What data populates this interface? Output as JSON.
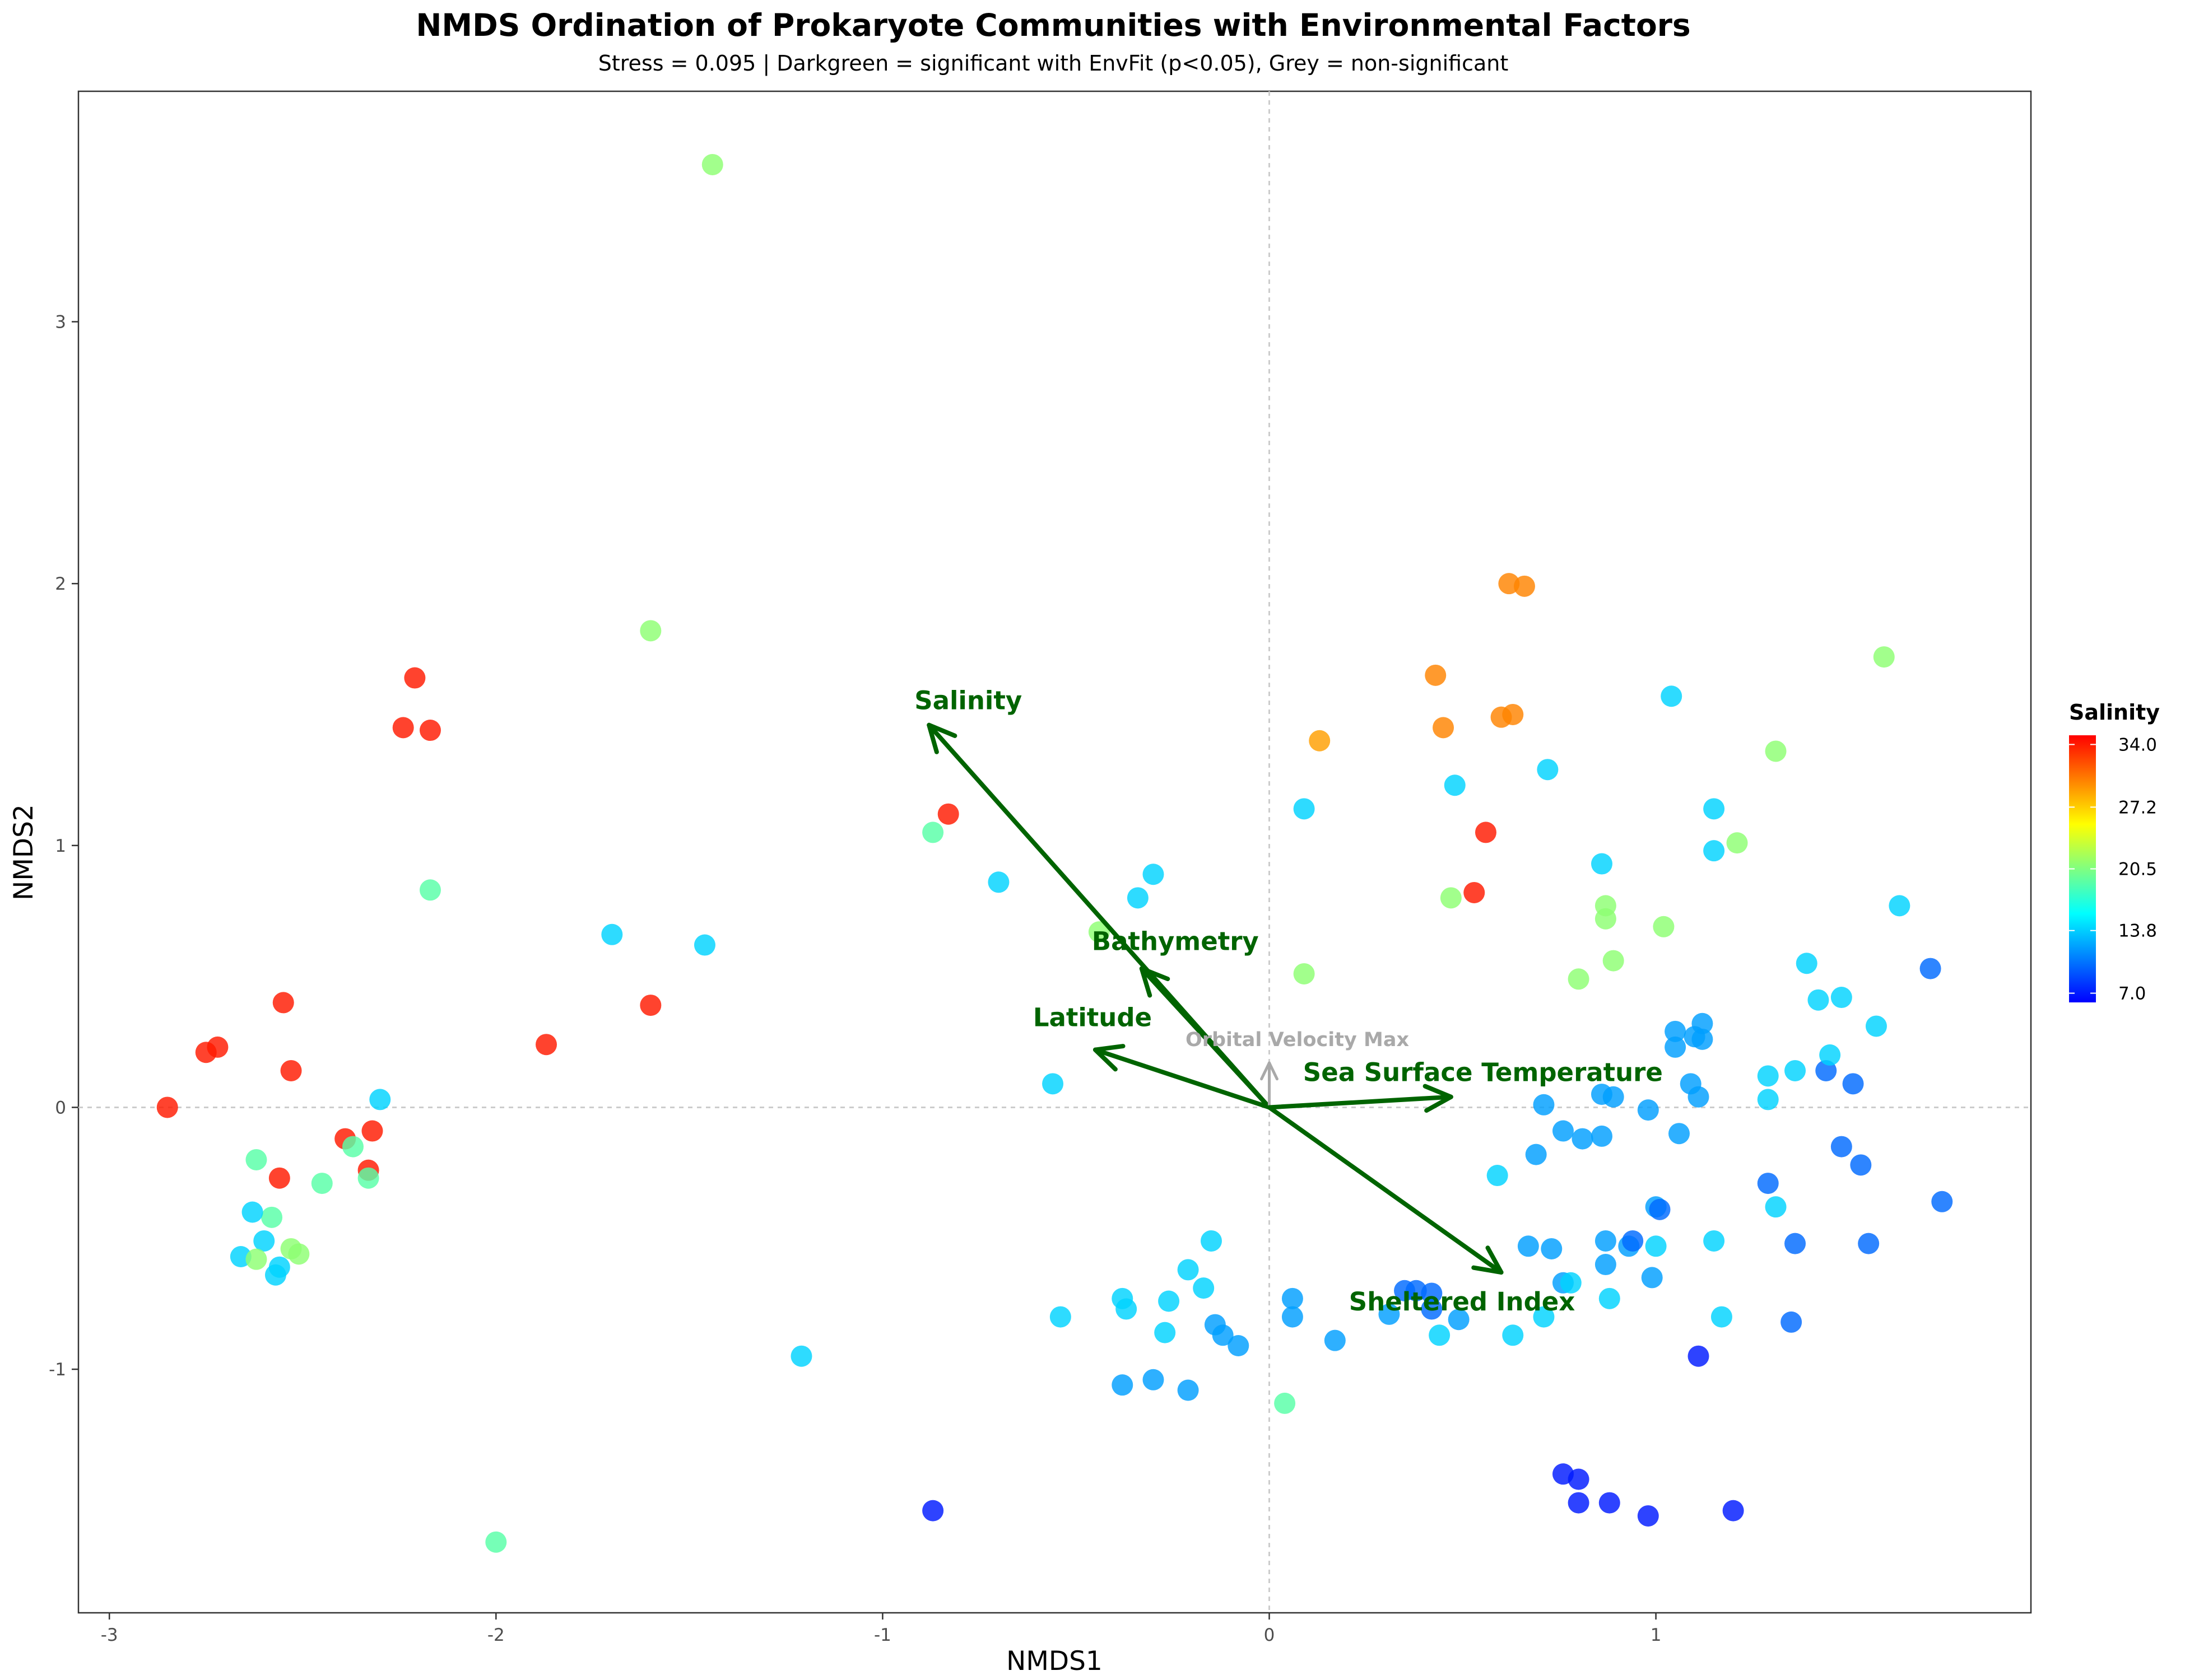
{
  "chart_data": {
    "type": "scatter",
    "title": "NMDS Ordination of Prokaryote Communities with Environmental Factors",
    "subtitle": "Stress = 0.095 | Darkgreen = significant with EnvFit (p<0.05), Grey = non-significant",
    "xlabel": "NMDS1",
    "ylabel": "NMDS2",
    "xlim": [
      -3.08,
      1.97
    ],
    "ylim": [
      -1.93,
      3.88
    ],
    "x_ticks": [
      -3,
      -2,
      -1,
      0,
      1
    ],
    "y_ticks": [
      -1,
      0,
      1,
      2,
      3
    ],
    "x_tick_labels": [
      "-3",
      "-2",
      "-1",
      "0",
      "1"
    ],
    "y_tick_labels": [
      "-1",
      "0",
      "1",
      "2",
      "3"
    ],
    "reference_lines": {
      "x": 0,
      "y": 0,
      "style": "dotted"
    },
    "grid": false,
    "color_variable": "Salinity",
    "colorbar": {
      "title": "Salinity",
      "min": 6,
      "max": 35,
      "ticks": [
        34.0,
        27.2,
        20.5,
        13.8,
        7.0
      ],
      "tick_labels": [
        "34.0",
        "27.2",
        "20.5",
        "13.8",
        "7.0"
      ],
      "colormap": [
        "#0000ff",
        "#0080ff",
        "#00ffff",
        "#80ff80",
        "#ffff00",
        "#ff8000",
        "#ff0000"
      ],
      "placement": "right"
    },
    "points": [
      {
        "x": -2.85,
        "y": 0.0,
        "salinity": 34
      },
      {
        "x": -2.75,
        "y": 0.21,
        "salinity": 34
      },
      {
        "x": -2.72,
        "y": 0.23,
        "salinity": 34
      },
      {
        "x": -2.55,
        "y": 0.4,
        "salinity": 34
      },
      {
        "x": -2.53,
        "y": 0.14,
        "salinity": 34
      },
      {
        "x": -2.56,
        "y": -0.27,
        "salinity": 34
      },
      {
        "x": -2.39,
        "y": -0.12,
        "salinity": 34
      },
      {
        "x": -2.32,
        "y": -0.09,
        "salinity": 34
      },
      {
        "x": -2.33,
        "y": -0.24,
        "salinity": 34
      },
      {
        "x": -2.37,
        "y": -0.15,
        "salinity": 19
      },
      {
        "x": -2.33,
        "y": -0.27,
        "salinity": 19
      },
      {
        "x": -2.3,
        "y": 0.03,
        "salinity": 14
      },
      {
        "x": -2.45,
        "y": -0.29,
        "salinity": 19
      },
      {
        "x": -2.62,
        "y": -0.2,
        "salinity": 19
      },
      {
        "x": -2.58,
        "y": -0.42,
        "salinity": 19
      },
      {
        "x": -2.63,
        "y": -0.4,
        "salinity": 14
      },
      {
        "x": -2.6,
        "y": -0.51,
        "salinity": 14
      },
      {
        "x": -2.66,
        "y": -0.57,
        "salinity": 14
      },
      {
        "x": -2.57,
        "y": -0.64,
        "salinity": 14
      },
      {
        "x": -2.56,
        "y": -0.61,
        "salinity": 14
      },
      {
        "x": -2.62,
        "y": -0.58,
        "salinity": 21
      },
      {
        "x": -2.53,
        "y": -0.54,
        "salinity": 21
      },
      {
        "x": -2.51,
        "y": -0.56,
        "salinity": 21
      },
      {
        "x": -2.21,
        "y": 1.64,
        "salinity": 34
      },
      {
        "x": -2.24,
        "y": 1.45,
        "salinity": 34
      },
      {
        "x": -2.17,
        "y": 1.44,
        "salinity": 34
      },
      {
        "x": -2.17,
        "y": 0.83,
        "salinity": 19
      },
      {
        "x": -1.87,
        "y": 0.24,
        "salinity": 34
      },
      {
        "x": -1.6,
        "y": 0.39,
        "salinity": 34
      },
      {
        "x": -1.6,
        "y": 1.82,
        "salinity": 21
      },
      {
        "x": -1.44,
        "y": 3.6,
        "salinity": 21
      },
      {
        "x": -1.7,
        "y": 0.66,
        "salinity": 14
      },
      {
        "x": -1.46,
        "y": 0.62,
        "salinity": 14
      },
      {
        "x": -2.0,
        "y": -1.66,
        "salinity": 19
      },
      {
        "x": -1.21,
        "y": -0.95,
        "salinity": 14
      },
      {
        "x": -0.83,
        "y": 1.12,
        "salinity": 34
      },
      {
        "x": -0.87,
        "y": 1.05,
        "salinity": 19
      },
      {
        "x": -0.7,
        "y": 0.86,
        "salinity": 14
      },
      {
        "x": -0.3,
        "y": 0.89,
        "salinity": 14
      },
      {
        "x": -0.34,
        "y": 0.8,
        "salinity": 14
      },
      {
        "x": -0.44,
        "y": 0.67,
        "salinity": 21
      },
      {
        "x": -0.56,
        "y": 0.09,
        "salinity": 14
      },
      {
        "x": -0.54,
        "y": -0.8,
        "salinity": 14
      },
      {
        "x": -0.38,
        "y": -0.73,
        "salinity": 14
      },
      {
        "x": -0.37,
        "y": -0.77,
        "salinity": 14
      },
      {
        "x": -0.26,
        "y": -0.74,
        "salinity": 14
      },
      {
        "x": -0.27,
        "y": -0.86,
        "salinity": 14
      },
      {
        "x": -0.21,
        "y": -0.62,
        "salinity": 14
      },
      {
        "x": -0.17,
        "y": -0.69,
        "salinity": 14
      },
      {
        "x": -0.15,
        "y": -0.51,
        "salinity": 14
      },
      {
        "x": -0.14,
        "y": -0.83,
        "salinity": 12
      },
      {
        "x": -0.12,
        "y": -0.87,
        "salinity": 12
      },
      {
        "x": -0.08,
        "y": -0.91,
        "salinity": 12
      },
      {
        "x": -0.38,
        "y": -1.06,
        "salinity": 12
      },
      {
        "x": -0.3,
        "y": -1.04,
        "salinity": 12
      },
      {
        "x": -0.21,
        "y": -1.08,
        "salinity": 12
      },
      {
        "x": -0.87,
        "y": -1.54,
        "salinity": 7
      },
      {
        "x": 0.04,
        "y": -1.13,
        "salinity": 19
      },
      {
        "x": 0.06,
        "y": -0.73,
        "salinity": 12
      },
      {
        "x": 0.06,
        "y": -0.8,
        "salinity": 12
      },
      {
        "x": 0.17,
        "y": -0.89,
        "salinity": 12
      },
      {
        "x": 0.31,
        "y": -0.79,
        "salinity": 12
      },
      {
        "x": 0.35,
        "y": -0.7,
        "salinity": 10
      },
      {
        "x": 0.38,
        "y": -0.7,
        "salinity": 10
      },
      {
        "x": 0.42,
        "y": -0.71,
        "salinity": 10
      },
      {
        "x": 0.42,
        "y": -0.77,
        "salinity": 10
      },
      {
        "x": 0.44,
        "y": -0.87,
        "salinity": 14
      },
      {
        "x": 0.49,
        "y": -0.81,
        "salinity": 12
      },
      {
        "x": 0.59,
        "y": -0.26,
        "salinity": 14
      },
      {
        "x": 0.63,
        "y": -0.87,
        "salinity": 14
      },
      {
        "x": 0.67,
        "y": -0.53,
        "salinity": 12
      },
      {
        "x": 0.69,
        "y": -0.18,
        "salinity": 12
      },
      {
        "x": 0.73,
        "y": -0.54,
        "salinity": 12
      },
      {
        "x": 0.71,
        "y": -0.8,
        "salinity": 14
      },
      {
        "x": 0.71,
        "y": 0.01,
        "salinity": 12
      },
      {
        "x": 0.76,
        "y": -0.09,
        "salinity": 12
      },
      {
        "x": 0.81,
        "y": -0.12,
        "salinity": 12
      },
      {
        "x": 0.86,
        "y": -0.11,
        "salinity": 12
      },
      {
        "x": 0.86,
        "y": 0.05,
        "salinity": 12
      },
      {
        "x": 0.89,
        "y": 0.04,
        "salinity": 12
      },
      {
        "x": 0.76,
        "y": -0.67,
        "salinity": 12
      },
      {
        "x": 0.78,
        "y": -0.67,
        "salinity": 14
      },
      {
        "x": 0.87,
        "y": -0.51,
        "salinity": 12
      },
      {
        "x": 0.87,
        "y": -0.6,
        "salinity": 12
      },
      {
        "x": 0.88,
        "y": -0.73,
        "salinity": 14
      },
      {
        "x": 0.93,
        "y": -0.53,
        "salinity": 12
      },
      {
        "x": 0.94,
        "y": -0.51,
        "salinity": 10
      },
      {
        "x": 0.99,
        "y": -0.65,
        "salinity": 12
      },
      {
        "x": 1.0,
        "y": -0.53,
        "salinity": 14
      },
      {
        "x": 1.0,
        "y": -0.38,
        "salinity": 12
      },
      {
        "x": 1.01,
        "y": -0.39,
        "salinity": 10
      },
      {
        "x": 0.98,
        "y": -0.01,
        "salinity": 12
      },
      {
        "x": 1.06,
        "y": -0.1,
        "salinity": 12
      },
      {
        "x": 1.09,
        "y": 0.09,
        "salinity": 12
      },
      {
        "x": 1.11,
        "y": 0.04,
        "salinity": 12
      },
      {
        "x": 1.05,
        "y": 0.23,
        "salinity": 12
      },
      {
        "x": 1.05,
        "y": 0.29,
        "salinity": 12
      },
      {
        "x": 1.1,
        "y": 0.27,
        "salinity": 12
      },
      {
        "x": 1.12,
        "y": 0.32,
        "salinity": 12
      },
      {
        "x": 1.12,
        "y": 0.26,
        "salinity": 12
      },
      {
        "x": 1.15,
        "y": -0.51,
        "salinity": 14
      },
      {
        "x": 1.17,
        "y": -0.8,
        "salinity": 14
      },
      {
        "x": 1.11,
        "y": -0.95,
        "salinity": 7
      },
      {
        "x": 0.76,
        "y": -1.4,
        "salinity": 7
      },
      {
        "x": 0.8,
        "y": -1.42,
        "salinity": 7
      },
      {
        "x": 0.8,
        "y": -1.51,
        "salinity": 7
      },
      {
        "x": 0.88,
        "y": -1.51,
        "salinity": 7
      },
      {
        "x": 0.98,
        "y": -1.56,
        "salinity": 7
      },
      {
        "x": 1.2,
        "y": -1.54,
        "salinity": 7
      },
      {
        "x": 1.29,
        "y": 0.12,
        "salinity": 14
      },
      {
        "x": 1.29,
        "y": 0.03,
        "salinity": 14
      },
      {
        "x": 1.31,
        "y": -0.38,
        "salinity": 14
      },
      {
        "x": 1.29,
        "y": -0.29,
        "salinity": 10
      },
      {
        "x": 1.36,
        "y": 0.14,
        "salinity": 14
      },
      {
        "x": 1.36,
        "y": -0.52,
        "salinity": 10
      },
      {
        "x": 1.35,
        "y": -0.82,
        "salinity": 10
      },
      {
        "x": 1.39,
        "y": 0.55,
        "salinity": 14
      },
      {
        "x": 1.42,
        "y": 0.41,
        "salinity": 14
      },
      {
        "x": 1.44,
        "y": 0.14,
        "salinity": 10
      },
      {
        "x": 1.45,
        "y": 0.2,
        "salinity": 14
      },
      {
        "x": 1.48,
        "y": 0.42,
        "salinity": 14
      },
      {
        "x": 1.48,
        "y": -0.15,
        "salinity": 10
      },
      {
        "x": 1.51,
        "y": 0.09,
        "salinity": 10
      },
      {
        "x": 1.53,
        "y": -0.22,
        "salinity": 10
      },
      {
        "x": 1.55,
        "y": -0.52,
        "salinity": 10
      },
      {
        "x": 1.57,
        "y": 0.31,
        "salinity": 14
      },
      {
        "x": 1.63,
        "y": 0.77,
        "salinity": 14
      },
      {
        "x": 1.71,
        "y": 0.53,
        "salinity": 10
      },
      {
        "x": 1.74,
        "y": -0.36,
        "salinity": 10
      },
      {
        "x": 1.59,
        "y": 1.72,
        "salinity": 21
      },
      {
        "x": 1.31,
        "y": 1.36,
        "salinity": 21
      },
      {
        "x": 1.21,
        "y": 1.01,
        "salinity": 21
      },
      {
        "x": 1.02,
        "y": 0.69,
        "salinity": 21
      },
      {
        "x": 0.87,
        "y": 0.77,
        "salinity": 21
      },
      {
        "x": 0.87,
        "y": 0.72,
        "salinity": 21
      },
      {
        "x": 0.89,
        "y": 0.56,
        "salinity": 21
      },
      {
        "x": 0.8,
        "y": 0.49,
        "salinity": 21
      },
      {
        "x": 0.47,
        "y": 0.8,
        "salinity": 21
      },
      {
        "x": 0.09,
        "y": 0.51,
        "salinity": 21
      },
      {
        "x": 0.86,
        "y": 0.93,
        "salinity": 14
      },
      {
        "x": 1.15,
        "y": 0.98,
        "salinity": 14
      },
      {
        "x": 1.15,
        "y": 1.14,
        "salinity": 14
      },
      {
        "x": 1.04,
        "y": 1.57,
        "salinity": 14
      },
      {
        "x": 0.72,
        "y": 1.29,
        "salinity": 14
      },
      {
        "x": 0.48,
        "y": 1.23,
        "salinity": 14
      },
      {
        "x": 0.09,
        "y": 1.14,
        "salinity": 14
      },
      {
        "x": 0.13,
        "y": 1.4,
        "salinity": 29
      },
      {
        "x": 0.43,
        "y": 1.65,
        "salinity": 30
      },
      {
        "x": 0.45,
        "y": 1.45,
        "salinity": 30
      },
      {
        "x": 0.6,
        "y": 1.49,
        "salinity": 30
      },
      {
        "x": 0.63,
        "y": 1.5,
        "salinity": 30
      },
      {
        "x": 0.62,
        "y": 2.0,
        "salinity": 30
      },
      {
        "x": 0.66,
        "y": 1.99,
        "salinity": 30
      },
      {
        "x": 0.56,
        "y": 1.05,
        "salinity": 34
      },
      {
        "x": 0.53,
        "y": 0.82,
        "salinity": 34
      }
    ],
    "vectors": [
      {
        "label": "Salinity",
        "x": -0.88,
        "y": 1.46,
        "significant": true
      },
      {
        "label": "Bathymetry",
        "x": -0.33,
        "y": 0.53,
        "significant": true
      },
      {
        "label": "Latitude",
        "x": -0.45,
        "y": 0.22,
        "significant": true
      },
      {
        "label": "Orbital Velocity Max",
        "x": 0.0,
        "y": 0.17,
        "significant": false
      },
      {
        "label": "Sea Surface Temperature",
        "x": 0.47,
        "y": 0.04,
        "significant": true
      },
      {
        "label": "Sheltered Index",
        "x": 0.6,
        "y": -0.63,
        "significant": true
      }
    ],
    "vector_colors": {
      "significant": "#006400",
      "non_significant": "#a9a9a9"
    }
  }
}
